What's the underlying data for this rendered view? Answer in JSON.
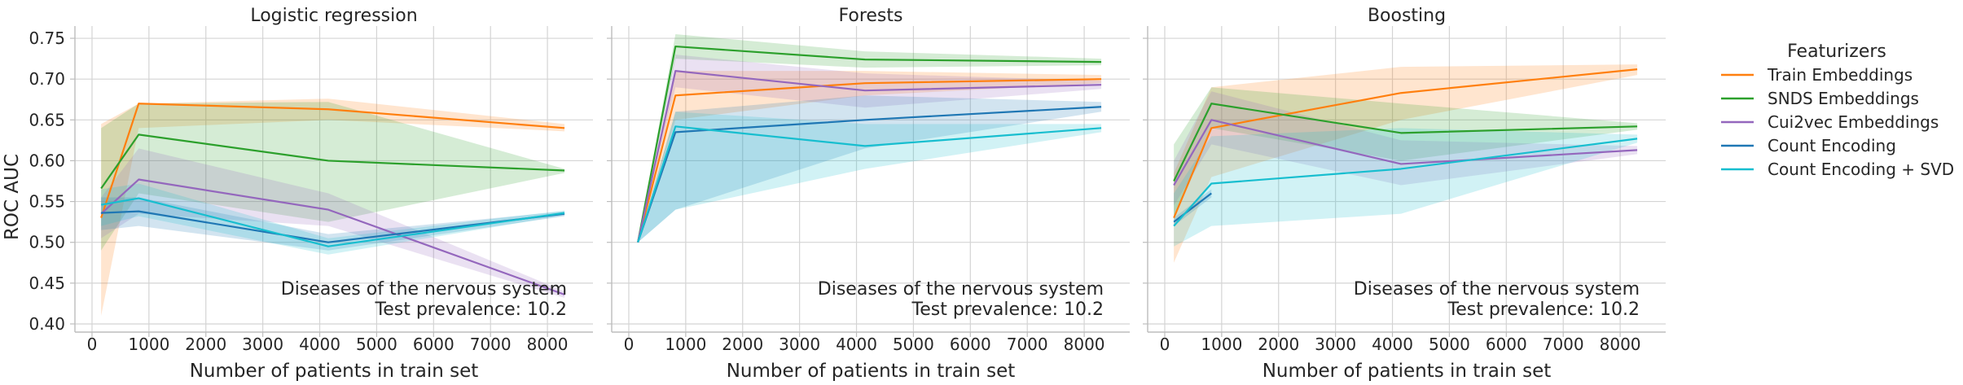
{
  "chart_data": {
    "type": "line",
    "ylabel": "ROC AUC",
    "xlabel": "Number of patients in train set",
    "xlim": [
      -300,
      8800
    ],
    "ylim": [
      0.39,
      0.765
    ],
    "xticks": [
      0,
      1000,
      2000,
      3000,
      4000,
      5000,
      6000,
      7000,
      8000
    ],
    "yticks": [
      0.4,
      0.45,
      0.5,
      0.55,
      0.6,
      0.65,
      0.7,
      0.75
    ],
    "ytick_labels": [
      "0.40",
      "0.45",
      "0.50",
      "0.55",
      "0.60",
      "0.65",
      "0.70",
      "0.75"
    ],
    "grid": true,
    "legend": {
      "title": "Featurizers",
      "placement": "outside-right",
      "entries": [
        {
          "name": "Train Embeddings",
          "color": "#ff7f0e"
        },
        {
          "name": "SNDS Embeddings",
          "color": "#2ca02c"
        },
        {
          "name": "Cui2vec Embeddings",
          "color": "#9467bd"
        },
        {
          "name": "Count Encoding",
          "color": "#1f77b4"
        },
        {
          "name": "Count Encoding + SVD",
          "color": "#17becf"
        }
      ]
    },
    "panels": [
      {
        "title": "Logistic regression",
        "annotation": [
          "Diseases of the nervous system",
          "Test prevalence: 10.2"
        ],
        "series": [
          {
            "name": "Train Embeddings",
            "x": [
              160,
              820,
              4150,
              8300
            ],
            "y": [
              0.53,
              0.67,
              0.663,
              0.64
            ],
            "lo": [
              0.41,
              0.64,
              0.65,
              0.636
            ],
            "hi": [
              0.645,
              0.67,
              0.676,
              0.645
            ]
          },
          {
            "name": "SNDS Embeddings",
            "x": [
              160,
              820,
              4150,
              8300
            ],
            "y": [
              0.566,
              0.632,
              0.6,
              0.588
            ],
            "lo": [
              0.49,
              0.56,
              0.525,
              0.585
            ],
            "hi": [
              0.64,
              0.67,
              0.672,
              0.59
            ]
          },
          {
            "name": "Cui2vec Embeddings",
            "x": [
              160,
              820,
              4150,
              8300
            ],
            "y": [
              0.535,
              0.577,
              0.54,
              0.436
            ],
            "lo": [
              0.505,
              0.535,
              0.52,
              0.432
            ],
            "hi": [
              0.555,
              0.615,
              0.56,
              0.44
            ]
          },
          {
            "name": "Count Encoding",
            "x": [
              160,
              820,
              4150,
              8300
            ],
            "y": [
              0.536,
              0.538,
              0.5,
              0.535
            ],
            "lo": [
              0.515,
              0.52,
              0.49,
              0.532
            ],
            "hi": [
              0.555,
              0.555,
              0.51,
              0.538
            ]
          },
          {
            "name": "Count Encoding + SVD",
            "x": [
              160,
              820,
              4150,
              8300
            ],
            "y": [
              0.546,
              0.554,
              0.495,
              0.536
            ],
            "lo": [
              0.52,
              0.532,
              0.485,
              0.533
            ],
            "hi": [
              0.565,
              0.572,
              0.505,
              0.539
            ]
          }
        ]
      },
      {
        "title": "Forests",
        "annotation": [
          "Diseases of the nervous system",
          "Test prevalence: 10.2"
        ],
        "series": [
          {
            "name": "Train Embeddings",
            "x": [
              160,
              820,
              4150,
              8300
            ],
            "y": [
              0.5,
              0.68,
              0.695,
              0.7
            ],
            "lo": [
              0.5,
              0.65,
              0.68,
              0.695
            ],
            "hi": [
              0.5,
              0.71,
              0.71,
              0.705
            ]
          },
          {
            "name": "SNDS Embeddings",
            "x": [
              160,
              820,
              4150,
              8300
            ],
            "y": [
              0.5,
              0.74,
              0.724,
              0.721
            ],
            "lo": [
              0.5,
              0.725,
              0.714,
              0.717
            ],
            "hi": [
              0.5,
              0.755,
              0.734,
              0.725
            ]
          },
          {
            "name": "Cui2vec Embeddings",
            "x": [
              160,
              820,
              4150,
              8300
            ],
            "y": [
              0.5,
              0.71,
              0.686,
              0.693
            ],
            "lo": [
              0.5,
              0.69,
              0.665,
              0.688
            ],
            "hi": [
              0.5,
              0.73,
              0.707,
              0.698
            ]
          },
          {
            "name": "Count Encoding",
            "x": [
              160,
              820,
              4150,
              8300
            ],
            "y": [
              0.5,
              0.635,
              0.65,
              0.666
            ],
            "lo": [
              0.5,
              0.54,
              0.615,
              0.66
            ],
            "hi": [
              0.5,
              0.66,
              0.68,
              0.672
            ]
          },
          {
            "name": "Count Encoding + SVD",
            "x": [
              160,
              820,
              4150,
              8300
            ],
            "y": [
              0.5,
              0.642,
              0.618,
              0.64
            ],
            "lo": [
              0.5,
              0.54,
              0.59,
              0.635
            ],
            "hi": [
              0.5,
              0.66,
              0.645,
              0.645
            ]
          }
        ]
      },
      {
        "title": "Boosting",
        "annotation": [
          "Diseases of the nervous system",
          "Test prevalence: 10.2"
        ],
        "series": [
          {
            "name": "Train Embeddings",
            "x": [
              160,
              820,
              4150,
              8300
            ],
            "y": [
              0.53,
              0.64,
              0.683,
              0.712
            ],
            "lo": [
              0.475,
              0.58,
              0.65,
              0.705
            ],
            "hi": [
              0.585,
              0.69,
              0.715,
              0.718
            ]
          },
          {
            "name": "SNDS Embeddings",
            "x": [
              160,
              820,
              4150,
              8300
            ],
            "y": [
              0.575,
              0.67,
              0.634,
              0.642
            ],
            "lo": [
              0.53,
              0.64,
              0.6,
              0.638
            ],
            "hi": [
              0.62,
              0.69,
              0.67,
              0.646
            ]
          },
          {
            "name": "Cui2vec Embeddings",
            "x": [
              160,
              820,
              4150,
              8300
            ],
            "y": [
              0.57,
              0.65,
              0.596,
              0.613
            ],
            "lo": [
              0.545,
              0.62,
              0.57,
              0.608
            ],
            "hi": [
              0.6,
              0.685,
              0.625,
              0.618
            ]
          },
          {
            "name": "Count Encoding",
            "x": [
              160,
              820
            ],
            "y": [
              0.525,
              0.56
            ],
            "lo": [
              0.52,
              0.555
            ],
            "hi": [
              0.53,
              0.565
            ]
          },
          {
            "name": "Count Encoding + SVD",
            "x": [
              160,
              820,
              4150,
              8300
            ],
            "y": [
              0.52,
              0.572,
              0.59,
              0.627
            ],
            "lo": [
              0.495,
              0.52,
              0.535,
              0.622
            ],
            "hi": [
              0.56,
              0.63,
              0.64,
              0.632
            ]
          }
        ]
      }
    ]
  }
}
